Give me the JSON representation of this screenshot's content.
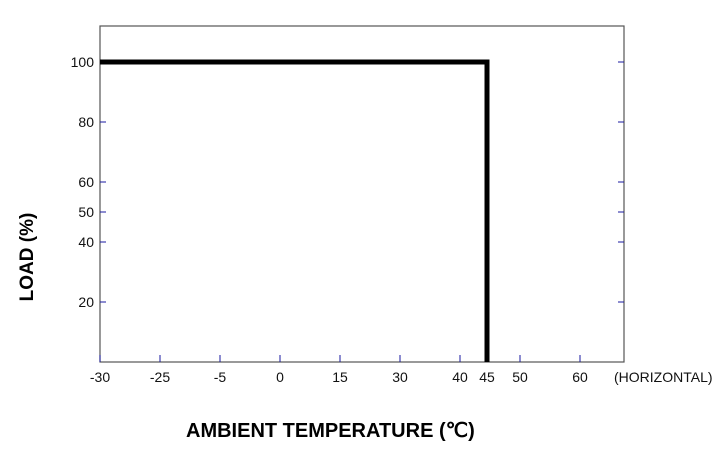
{
  "chart_data": {
    "type": "line",
    "title": "",
    "xlabel": "AMBIENT TEMPERATURE (℃)",
    "ylabel": "LOAD (%)",
    "x_note": "(HORIZONTAL)",
    "x_ticks": [
      "-30",
      "-25",
      "-5",
      "0",
      "15",
      "30",
      "40",
      "45",
      "50",
      "60"
    ],
    "y_ticks": [
      20,
      40,
      50,
      60,
      80,
      100
    ],
    "ylim": [
      0,
      112
    ],
    "grid": false,
    "series": [
      {
        "x": [
          -30,
          45,
          45
        ],
        "y": [
          100,
          100,
          0
        ],
        "color": "#000000"
      }
    ],
    "tick_color": "#1a1aa0"
  }
}
